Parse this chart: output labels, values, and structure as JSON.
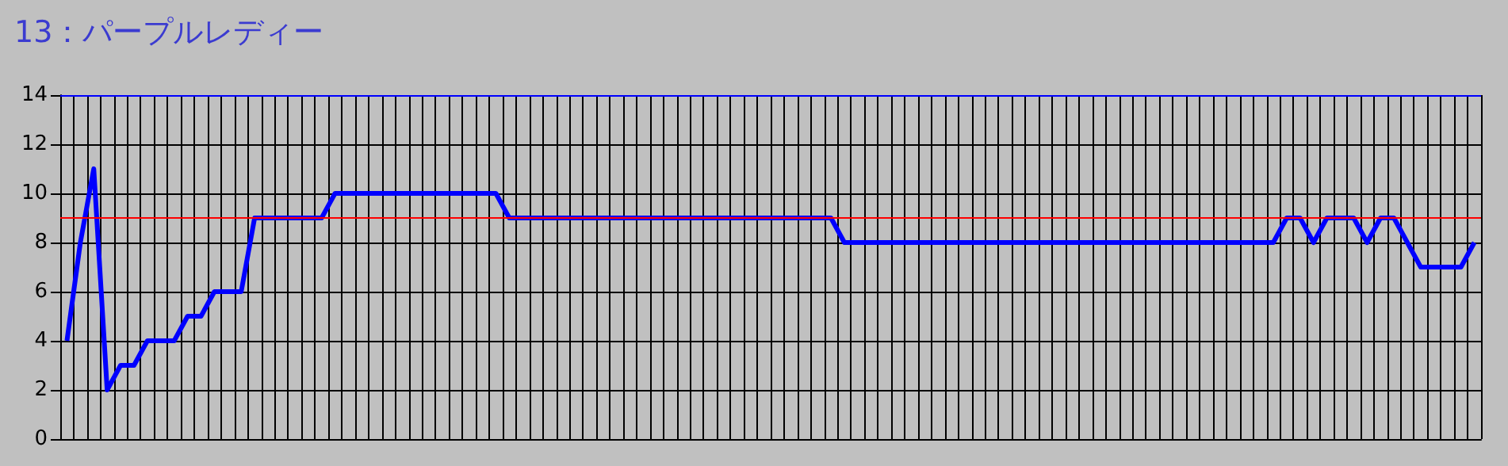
{
  "chart_data": {
    "type": "line",
    "title": "13：パープルレディー",
    "categories": [
      null,
      null,
      null,
      null,
      null,
      null,
      null,
      null,
      null,
      null,
      null,
      null,
      null,
      null,
      null,
      null,
      null,
      null,
      null,
      null,
      null,
      null,
      null,
      null,
      null,
      null,
      null,
      null,
      null,
      null,
      null,
      null,
      null,
      null,
      null,
      null,
      null,
      null,
      null,
      null,
      null,
      null,
      null,
      null,
      null,
      null,
      null,
      null,
      null,
      null,
      null,
      null,
      null,
      null,
      null,
      null,
      null,
      null,
      null,
      null,
      null,
      null,
      null,
      null,
      null,
      null,
      null,
      null,
      null,
      null,
      null,
      null,
      null,
      null,
      null,
      null,
      null,
      null,
      null,
      null,
      null,
      null,
      null,
      null,
      null,
      null,
      null,
      null,
      null,
      null,
      null,
      null,
      null,
      null,
      null,
      null,
      null,
      null,
      null,
      null,
      null,
      null,
      null,
      null,
      null,
      null
    ],
    "series": [
      {
        "color": "#0000ff",
        "values": [
          4,
          8,
          11,
          2,
          3,
          3,
          4,
          4,
          4,
          5,
          5,
          6,
          6,
          6,
          9,
          9,
          9,
          9,
          9,
          9,
          10,
          10,
          10,
          10,
          10,
          10,
          10,
          10,
          10,
          10,
          10,
          10,
          10,
          9,
          9,
          9,
          9,
          9,
          9,
          9,
          9,
          9,
          9,
          9,
          9,
          9,
          9,
          9,
          9,
          9,
          9,
          9,
          9,
          9,
          9,
          9,
          9,
          9,
          8,
          8,
          8,
          8,
          8,
          8,
          8,
          8,
          8,
          8,
          8,
          8,
          8,
          8,
          8,
          8,
          8,
          8,
          8,
          8,
          8,
          8,
          8,
          8,
          8,
          8,
          8,
          8,
          8,
          8,
          8,
          8,
          8,
          9,
          9,
          8,
          9,
          9,
          9,
          8,
          9,
          9,
          8,
          7,
          7,
          7,
          7,
          8
        ]
      }
    ],
    "ylim": [
      0,
      14
    ],
    "yticks": [
      0,
      2,
      4,
      6,
      8,
      10,
      12,
      14
    ],
    "grid": true,
    "marker": "none",
    "line_style": "solid",
    "ref_lines": [
      {
        "axis": "y",
        "value": 9,
        "color": "#ff0000"
      },
      {
        "axis": "y",
        "value": 14,
        "color": "#0000ff"
      }
    ]
  }
}
